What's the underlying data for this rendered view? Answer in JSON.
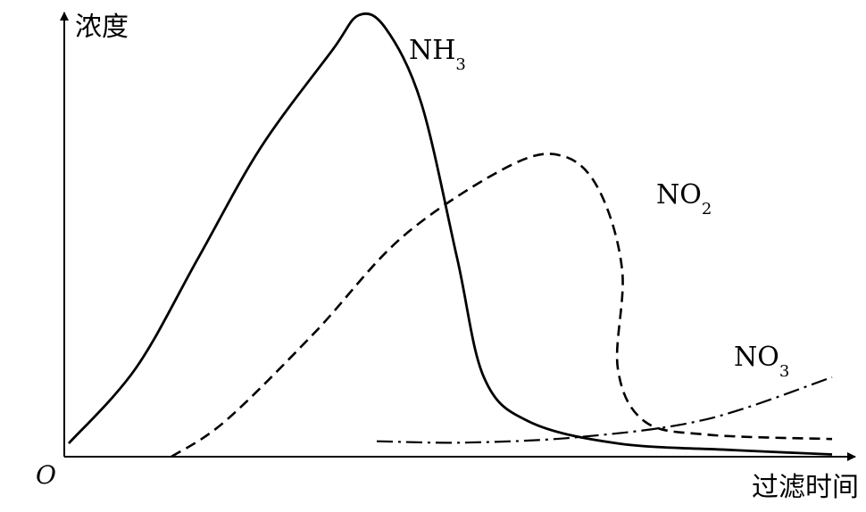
{
  "chart_data": {
    "type": "line",
    "xlabel": "过滤时间",
    "ylabel": "浓度",
    "origin_label": "O",
    "axis_ticks": "none",
    "grid": false,
    "series": [
      {
        "name": "NH3",
        "label_main": "NH",
        "label_sub": "3",
        "style": "solid",
        "points": [
          [
            0.5,
            3
          ],
          [
            8,
            20
          ],
          [
            15,
            45
          ],
          [
            22,
            70
          ],
          [
            30,
            92
          ],
          [
            33,
            100
          ],
          [
            36,
            97
          ],
          [
            40,
            80
          ],
          [
            44,
            45
          ],
          [
            47,
            18
          ],
          [
            52,
            8
          ],
          [
            62,
            3
          ],
          [
            75,
            1.5
          ],
          [
            86,
            0.5
          ]
        ]
      },
      {
        "name": "NO2",
        "label_main": "NO",
        "label_sub": "2",
        "style": "dashed",
        "points": [
          [
            12,
            0
          ],
          [
            18,
            8
          ],
          [
            28,
            28
          ],
          [
            38,
            50
          ],
          [
            50,
            66
          ],
          [
            56,
            68
          ],
          [
            60,
            60
          ],
          [
            62.5,
            42
          ],
          [
            62,
            20
          ],
          [
            65,
            8
          ],
          [
            72,
            5
          ],
          [
            86,
            4
          ]
        ]
      },
      {
        "name": "NO3",
        "label_main": "NO",
        "label_sub": "3",
        "style": "dash-dot",
        "points": [
          [
            35,
            3.5
          ],
          [
            45,
            3.2
          ],
          [
            58,
            4.5
          ],
          [
            72,
            8.5
          ],
          [
            86,
            18
          ]
        ]
      }
    ]
  }
}
